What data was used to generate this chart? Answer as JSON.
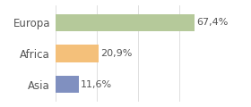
{
  "categories": [
    "Europa",
    "Africa",
    "Asia"
  ],
  "values": [
    67.4,
    20.9,
    11.6
  ],
  "labels": [
    "67,4%",
    "20,9%",
    "11,6%"
  ],
  "bar_colors": [
    "#b5c99a",
    "#f4c07a",
    "#8090c0"
  ],
  "background_color": "#ffffff",
  "grid_color": "#e0e0e0",
  "text_color": "#555555",
  "xlim": [
    0,
    80
  ],
  "bar_height": 0.55,
  "label_fontsize": 8,
  "category_fontsize": 8.5
}
